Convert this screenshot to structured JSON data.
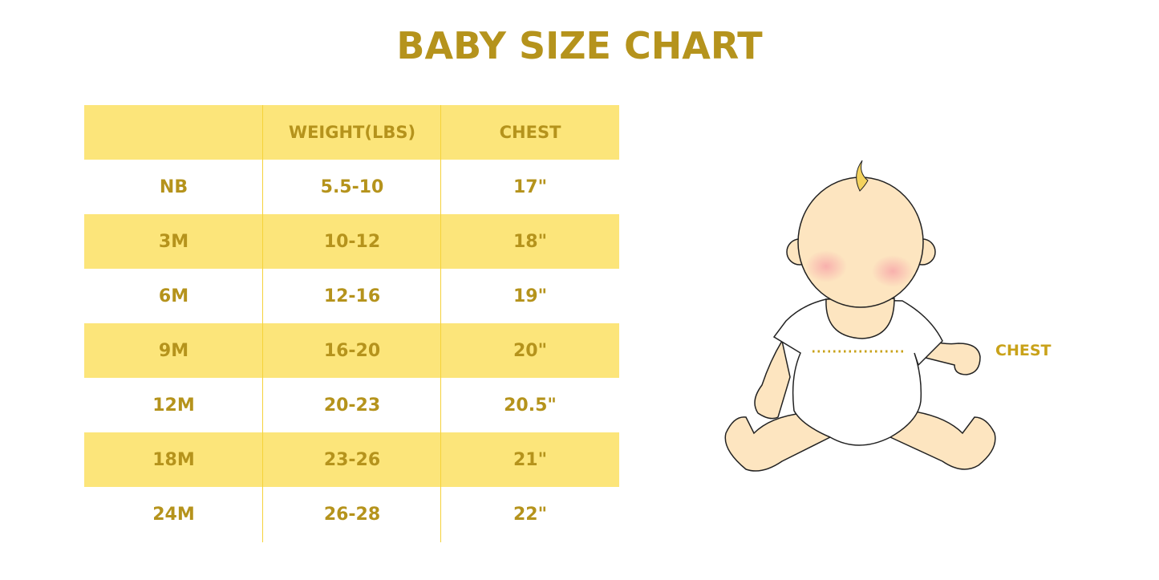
{
  "title": "BABY SIZE CHART",
  "table": {
    "headers": [
      "",
      "WEIGHT(LBS)",
      "CHEST"
    ],
    "rows": [
      [
        "NB",
        "5.5-10",
        "17\""
      ],
      [
        "3M",
        "10-12",
        "18\""
      ],
      [
        "6M",
        "12-16",
        "19\""
      ],
      [
        "9M",
        "16-20",
        "20\""
      ],
      [
        "12M",
        "20-23",
        "20.5\""
      ],
      [
        "18M",
        "23-26",
        "21\""
      ],
      [
        "24M",
        "26-28",
        "22\""
      ]
    ]
  },
  "illustration": {
    "chest_label": "CHEST"
  },
  "colors": {
    "text": "#b5931c",
    "row_fill": "#fce57a",
    "skin": "#fde5c0"
  }
}
